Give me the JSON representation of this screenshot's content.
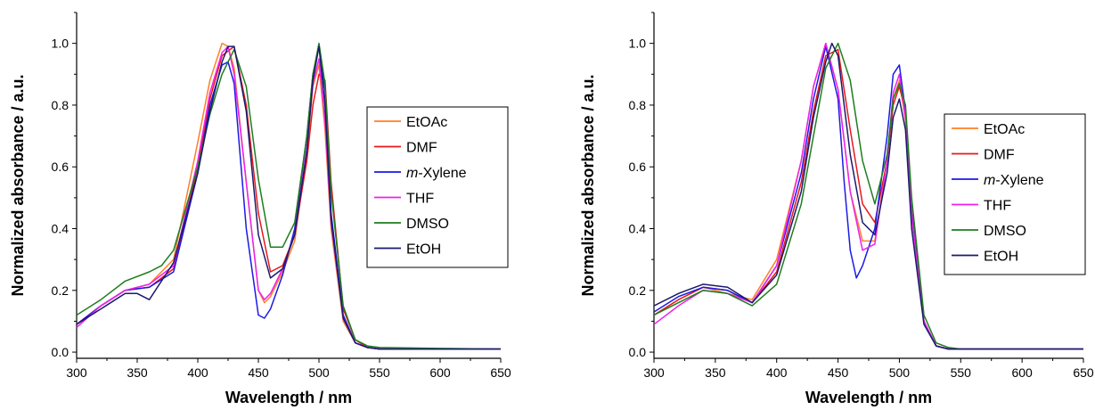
{
  "chart_data": [
    {
      "type": "line",
      "xlabel": "Wavelength / nm",
      "ylabel": "Normalized absorbance / a.u.",
      "xlim": [
        300,
        650
      ],
      "ylim": [
        -0.02,
        1.1
      ],
      "x_ticks": [
        300,
        350,
        400,
        450,
        500,
        550,
        600,
        650
      ],
      "y_ticks": [
        "0.0",
        "0.2",
        "0.4",
        "0.6",
        "0.8",
        "1.0"
      ],
      "legend_position": "right",
      "series": [
        {
          "name": "EtOAc",
          "label_main": "EtOAc",
          "color": "#ff7f27",
          "x": [
            300,
            320,
            340,
            360,
            380,
            400,
            410,
            420,
            425,
            430,
            440,
            450,
            455,
            460,
            470,
            480,
            490,
            495,
            500,
            505,
            510,
            520,
            530,
            540,
            550,
            600,
            650
          ],
          "y": [
            0.09,
            0.15,
            0.2,
            0.22,
            0.3,
            0.68,
            0.88,
            1.0,
            0.99,
            0.92,
            0.55,
            0.2,
            0.16,
            0.18,
            0.26,
            0.36,
            0.65,
            0.86,
            0.93,
            0.72,
            0.4,
            0.1,
            0.03,
            0.015,
            0.01,
            0.01,
            0.01
          ]
        },
        {
          "name": "DMF",
          "label_main": "DMF",
          "color": "#e8191d",
          "x": [
            300,
            320,
            340,
            360,
            380,
            400,
            410,
            420,
            430,
            440,
            450,
            460,
            470,
            480,
            490,
            495,
            500,
            505,
            510,
            520,
            530,
            540,
            550,
            600,
            650
          ],
          "y": [
            0.09,
            0.15,
            0.2,
            0.21,
            0.27,
            0.6,
            0.82,
            0.96,
            0.99,
            0.8,
            0.45,
            0.26,
            0.28,
            0.38,
            0.62,
            0.8,
            0.9,
            0.88,
            0.55,
            0.14,
            0.04,
            0.015,
            0.01,
            0.01,
            0.01
          ]
        },
        {
          "name": "m-Xylene",
          "label_em": "m",
          "label_main": "-Xylene",
          "color": "#1a1ae6",
          "x": [
            300,
            320,
            340,
            360,
            380,
            400,
            410,
            420,
            425,
            430,
            440,
            450,
            455,
            460,
            470,
            480,
            490,
            495,
            500,
            505,
            510,
            520,
            530,
            540,
            550,
            600,
            650
          ],
          "y": [
            0.09,
            0.15,
            0.2,
            0.21,
            0.26,
            0.58,
            0.8,
            0.93,
            0.94,
            0.87,
            0.4,
            0.12,
            0.11,
            0.14,
            0.25,
            0.4,
            0.7,
            0.9,
            0.99,
            0.85,
            0.45,
            0.12,
            0.03,
            0.015,
            0.01,
            0.01,
            0.01
          ]
        },
        {
          "name": "THF",
          "label_main": "THF",
          "color": "#ee22ee",
          "x": [
            300,
            320,
            340,
            360,
            380,
            400,
            410,
            420,
            425,
            430,
            440,
            450,
            455,
            460,
            470,
            480,
            490,
            495,
            500,
            505,
            510,
            520,
            530,
            540,
            550,
            600,
            650
          ],
          "y": [
            0.08,
            0.15,
            0.2,
            0.22,
            0.28,
            0.62,
            0.84,
            0.97,
            0.99,
            0.9,
            0.55,
            0.2,
            0.17,
            0.19,
            0.27,
            0.38,
            0.66,
            0.87,
            0.95,
            0.75,
            0.42,
            0.11,
            0.03,
            0.015,
            0.01,
            0.01,
            0.01
          ]
        },
        {
          "name": "DMSO",
          "label_main": "DMSO",
          "color": "#1e7d1e",
          "x": [
            300,
            320,
            340,
            360,
            370,
            380,
            400,
            410,
            420,
            430,
            440,
            450,
            460,
            470,
            480,
            490,
            495,
            500,
            505,
            510,
            520,
            530,
            540,
            550,
            600,
            650
          ],
          "y": [
            0.12,
            0.17,
            0.23,
            0.26,
            0.28,
            0.33,
            0.6,
            0.77,
            0.9,
            0.98,
            0.86,
            0.56,
            0.34,
            0.34,
            0.42,
            0.7,
            0.9,
            1.0,
            0.87,
            0.52,
            0.15,
            0.04,
            0.02,
            0.015,
            0.012,
            0.01
          ]
        },
        {
          "name": "EtOH",
          "label_main": "EtOH",
          "color": "#1a1a6e",
          "x": [
            300,
            320,
            340,
            350,
            360,
            380,
            400,
            410,
            420,
            425,
            430,
            440,
            450,
            460,
            470,
            480,
            490,
            495,
            500,
            505,
            510,
            520,
            530,
            540,
            550,
            600,
            650
          ],
          "y": [
            0.09,
            0.14,
            0.19,
            0.19,
            0.17,
            0.29,
            0.58,
            0.78,
            0.94,
            0.99,
            0.99,
            0.78,
            0.38,
            0.24,
            0.27,
            0.38,
            0.65,
            0.88,
            0.99,
            0.8,
            0.43,
            0.11,
            0.03,
            0.015,
            0.01,
            0.01,
            0.01
          ]
        }
      ]
    },
    {
      "type": "line",
      "xlabel": "Wavelength / nm",
      "ylabel": "Normalized absorbance / a.u.",
      "xlim": [
        300,
        650
      ],
      "ylim": [
        -0.02,
        1.1
      ],
      "x_ticks": [
        300,
        350,
        400,
        450,
        500,
        550,
        600,
        650
      ],
      "y_ticks": [
        "0.0",
        "0.2",
        "0.4",
        "0.6",
        "0.8",
        "1.0"
      ],
      "legend_position": "right",
      "series": [
        {
          "name": "EtOAc",
          "label_main": "EtOAc",
          "color": "#ff7f27",
          "x": [
            300,
            320,
            340,
            360,
            380,
            400,
            420,
            430,
            440,
            450,
            460,
            470,
            480,
            490,
            495,
            500,
            505,
            510,
            520,
            530,
            540,
            550,
            600,
            650
          ],
          "y": [
            0.12,
            0.17,
            0.21,
            0.19,
            0.17,
            0.3,
            0.62,
            0.86,
            1.0,
            0.85,
            0.52,
            0.36,
            0.36,
            0.62,
            0.82,
            0.88,
            0.75,
            0.45,
            0.1,
            0.02,
            0.01,
            0.01,
            0.01,
            0.01
          ]
        },
        {
          "name": "DMF",
          "label_main": "DMF",
          "color": "#e8191d",
          "x": [
            300,
            320,
            340,
            360,
            380,
            400,
            420,
            430,
            440,
            450,
            460,
            470,
            480,
            490,
            495,
            500,
            505,
            510,
            520,
            530,
            540,
            550,
            600,
            650
          ],
          "y": [
            0.12,
            0.17,
            0.21,
            0.2,
            0.16,
            0.26,
            0.55,
            0.78,
            0.96,
            0.98,
            0.72,
            0.48,
            0.42,
            0.62,
            0.8,
            0.86,
            0.78,
            0.46,
            0.1,
            0.02,
            0.01,
            0.01,
            0.01,
            0.01
          ]
        },
        {
          "name": "m-Xylene",
          "label_em": "m",
          "label_main": "-Xylene",
          "color": "#1a1ae6",
          "x": [
            300,
            320,
            340,
            360,
            380,
            400,
            420,
            430,
            440,
            450,
            455,
            460,
            465,
            470,
            480,
            490,
            495,
            500,
            505,
            510,
            520,
            530,
            540,
            550,
            600,
            650
          ],
          "y": [
            0.13,
            0.18,
            0.21,
            0.2,
            0.16,
            0.28,
            0.58,
            0.82,
            0.99,
            0.82,
            0.55,
            0.33,
            0.24,
            0.28,
            0.4,
            0.7,
            0.9,
            0.93,
            0.78,
            0.45,
            0.1,
            0.02,
            0.01,
            0.01,
            0.01,
            0.01
          ]
        },
        {
          "name": "THF",
          "label_main": "THF",
          "color": "#ee22ee",
          "x": [
            300,
            320,
            340,
            360,
            380,
            400,
            420,
            430,
            440,
            450,
            460,
            470,
            480,
            490,
            495,
            500,
            505,
            510,
            520,
            530,
            540,
            550,
            600,
            650
          ],
          "y": [
            0.09,
            0.15,
            0.2,
            0.19,
            0.16,
            0.28,
            0.62,
            0.86,
            1.0,
            0.85,
            0.52,
            0.33,
            0.35,
            0.62,
            0.84,
            0.9,
            0.76,
            0.44,
            0.1,
            0.02,
            0.01,
            0.01,
            0.01,
            0.01
          ]
        },
        {
          "name": "DMSO",
          "label_main": "DMSO",
          "color": "#1e7d1e",
          "x": [
            300,
            320,
            340,
            360,
            380,
            400,
            420,
            430,
            440,
            450,
            460,
            470,
            480,
            490,
            495,
            500,
            505,
            510,
            520,
            530,
            540,
            550,
            600,
            650
          ],
          "y": [
            0.12,
            0.16,
            0.2,
            0.19,
            0.15,
            0.22,
            0.48,
            0.7,
            0.92,
            1.0,
            0.88,
            0.62,
            0.48,
            0.64,
            0.82,
            0.87,
            0.8,
            0.5,
            0.12,
            0.03,
            0.015,
            0.01,
            0.01,
            0.01
          ]
        },
        {
          "name": "EtOH",
          "label_main": "EtOH",
          "color": "#1a1a6e",
          "x": [
            300,
            320,
            340,
            360,
            380,
            400,
            420,
            430,
            440,
            445,
            450,
            460,
            470,
            480,
            490,
            495,
            500,
            505,
            510,
            520,
            530,
            540,
            550,
            600,
            650
          ],
          "y": [
            0.15,
            0.19,
            0.22,
            0.21,
            0.16,
            0.25,
            0.52,
            0.76,
            0.94,
            1.0,
            0.96,
            0.64,
            0.42,
            0.38,
            0.58,
            0.76,
            0.82,
            0.72,
            0.4,
            0.09,
            0.02,
            0.01,
            0.01,
            0.01,
            0.01
          ]
        }
      ]
    }
  ]
}
